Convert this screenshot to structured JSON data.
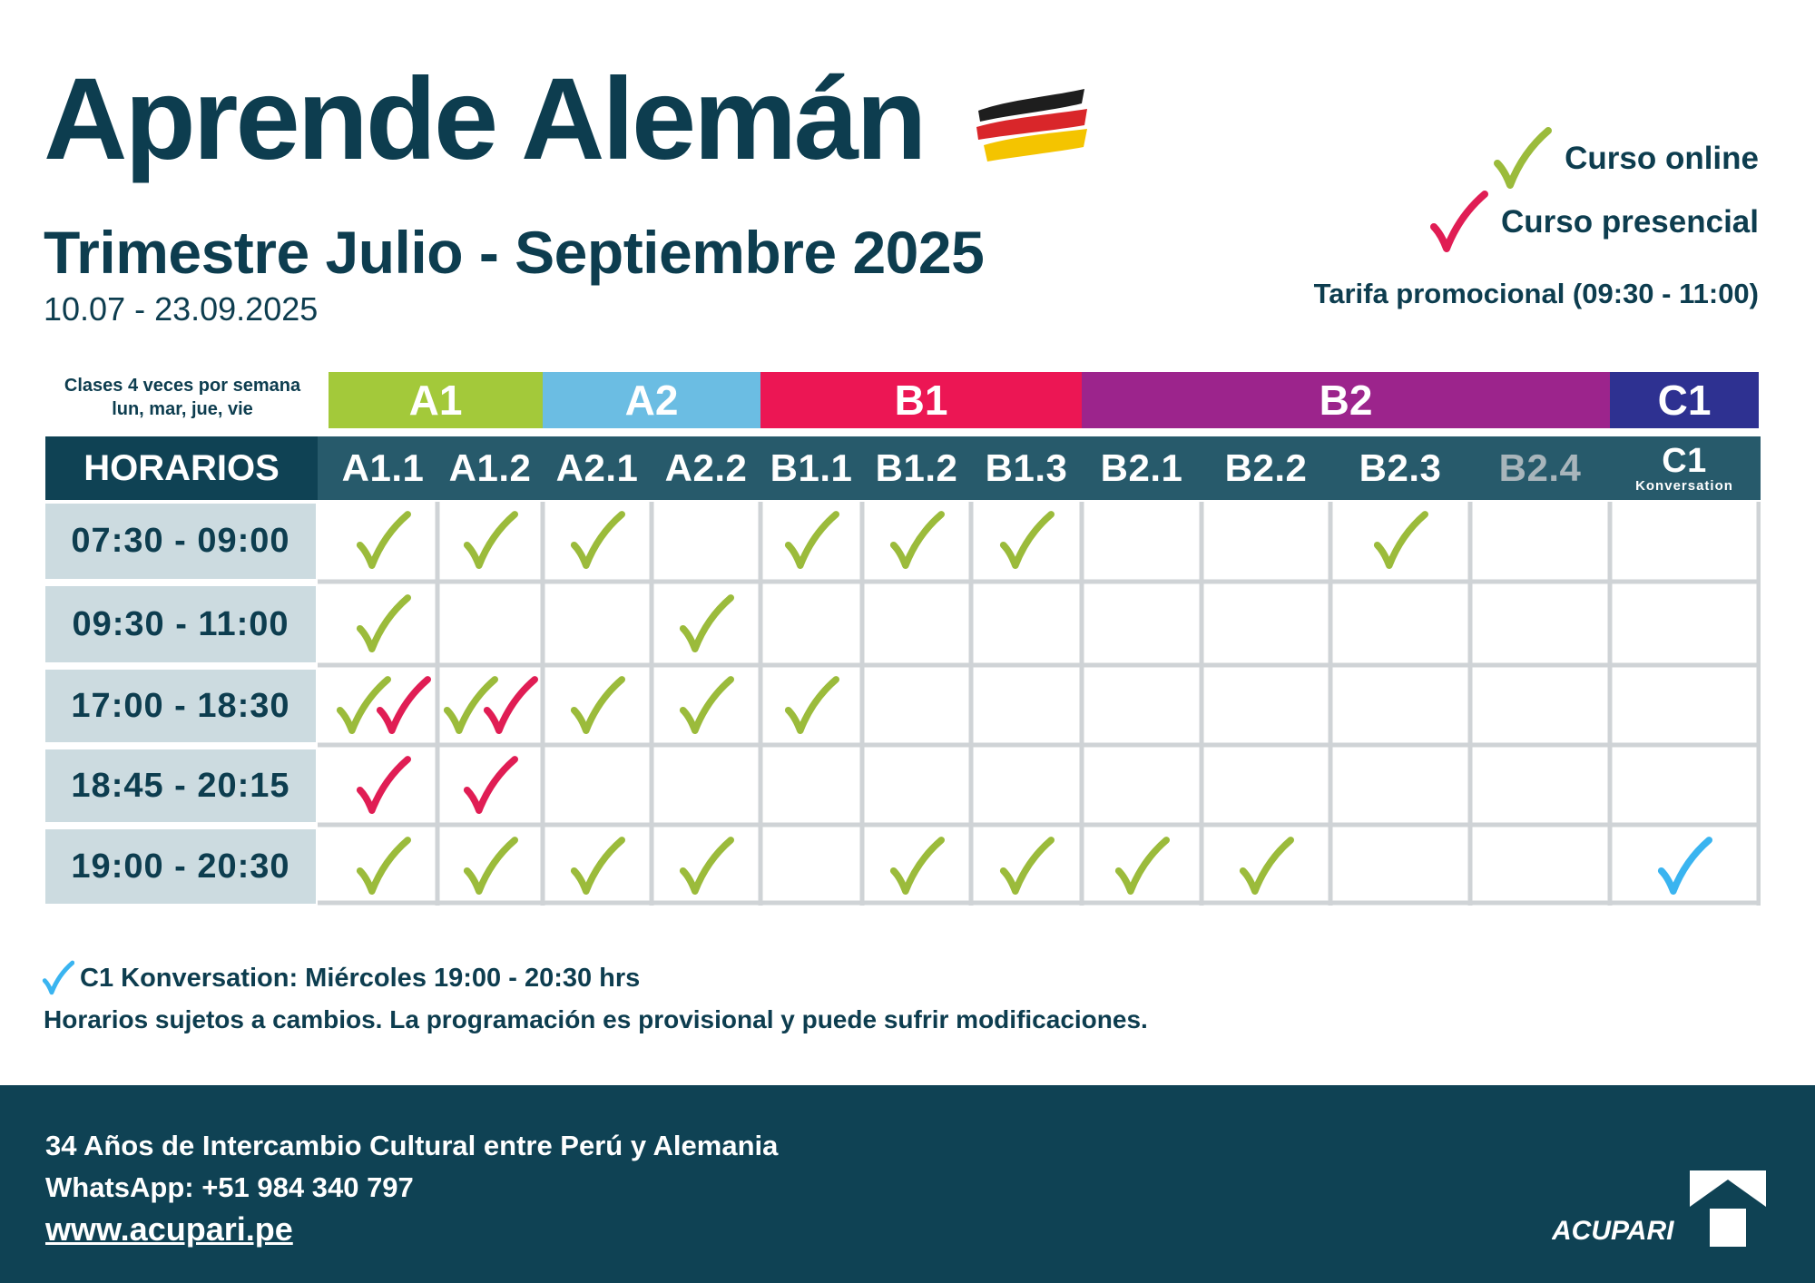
{
  "header": {
    "title": "Aprende Alemán",
    "subtitle": "Trimestre Julio - Septiembre 2025",
    "dates": "10.07 - 23.09.2025"
  },
  "legend": {
    "online_label": "Curso online",
    "presencial_label": "Curso presencial",
    "tarifa_label": "Tarifa promocional (09:30 - 11:00)"
  },
  "frequency": {
    "line1": "Clases 4 veces por semana",
    "line2": "lun, mar, jue, vie"
  },
  "levels": [
    {
      "label": "A1",
      "color": "#a3c93a"
    },
    {
      "label": "A2",
      "color": "#6bbde3"
    },
    {
      "label": "B1",
      "color": "#ec1654"
    },
    {
      "label": "B2",
      "color": "#9c248c"
    },
    {
      "label": "C1",
      "color": "#2e3191"
    }
  ],
  "schedule_header": "HORARIOS",
  "columns": [
    {
      "label": "A1.1"
    },
    {
      "label": "A1.2"
    },
    {
      "label": "A2.1"
    },
    {
      "label": "A2.2"
    },
    {
      "label": "B1.1"
    },
    {
      "label": "B1.2"
    },
    {
      "label": "B1.3"
    },
    {
      "label": "B2.1"
    },
    {
      "label": "B2.2"
    },
    {
      "label": "B2.3"
    },
    {
      "label": "B2.4"
    },
    {
      "label": "C1",
      "sub": "Konversation"
    }
  ],
  "rows": [
    {
      "time": "07:30 - 09:00",
      "cells": [
        [
          "online"
        ],
        [
          "online"
        ],
        [
          "online"
        ],
        [],
        [
          "online"
        ],
        [
          "online"
        ],
        [
          "online"
        ],
        [],
        [],
        [
          "online"
        ],
        [],
        []
      ]
    },
    {
      "time": "09:30 - 11:00",
      "cells": [
        [
          "online"
        ],
        [],
        [],
        [
          "online"
        ],
        [],
        [],
        [],
        [],
        [],
        [],
        [],
        []
      ]
    },
    {
      "time": "17:00 - 18:30",
      "cells": [
        [
          "online",
          "presencial"
        ],
        [
          "online",
          "presencial"
        ],
        [
          "online"
        ],
        [
          "online"
        ],
        [
          "online"
        ],
        [],
        [],
        [],
        [],
        [],
        [],
        []
      ]
    },
    {
      "time": "18:45 - 20:15",
      "cells": [
        [
          "presencial"
        ],
        [
          "presencial"
        ],
        [],
        [],
        [],
        [],
        [],
        [],
        [],
        [],
        [],
        []
      ]
    },
    {
      "time": "19:00 - 20:30",
      "cells": [
        [
          "online"
        ],
        [
          "online"
        ],
        [
          "online"
        ],
        [
          "online"
        ],
        [],
        [
          "online"
        ],
        [
          "online"
        ],
        [
          "online"
        ],
        [
          "online"
        ],
        [],
        [],
        [
          "c1"
        ]
      ]
    }
  ],
  "colors": {
    "online": "#9bbb3b",
    "presencial": "#e01d54",
    "c1": "#3ab4f0",
    "navy": "#0f4254",
    "grid": "#cfd3d6"
  },
  "notes": {
    "c1_note": "C1 Konversation: Miércoles 19:00 - 20:30 hrs",
    "disclaimer": "Horarios sujetos a cambios. La programación es provisional y puede sufrir modificaciones."
  },
  "footer": {
    "years": "34 Años de Intercambio Cultural entre Perú y Alemania",
    "whatsapp": "WhatsApp: +51 984 340 797",
    "website": "www.acupari.pe",
    "logo_text": "ACUPARI"
  }
}
